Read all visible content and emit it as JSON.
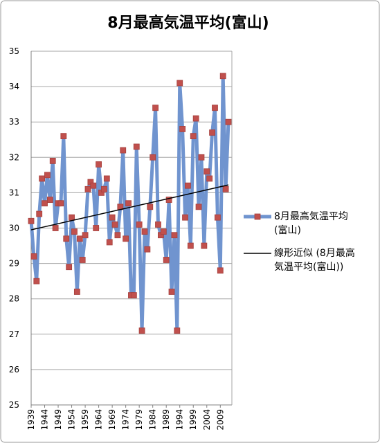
{
  "chart_data": {
    "type": "line",
    "title": "8月最高気温平均(富山)",
    "x": [
      1939,
      1940,
      1941,
      1942,
      1943,
      1944,
      1945,
      1946,
      1947,
      1948,
      1949,
      1950,
      1951,
      1952,
      1953,
      1954,
      1955,
      1956,
      1957,
      1958,
      1959,
      1960,
      1961,
      1962,
      1963,
      1964,
      1965,
      1966,
      1967,
      1968,
      1969,
      1970,
      1971,
      1972,
      1973,
      1974,
      1975,
      1976,
      1977,
      1978,
      1979,
      1980,
      1981,
      1982,
      1983,
      1984,
      1985,
      1986,
      1987,
      1988,
      1989,
      1990,
      1991,
      1992,
      1993,
      1994,
      1995,
      1996,
      1997,
      1998,
      1999,
      2000,
      2001,
      2002,
      2003,
      2004,
      2005,
      2006,
      2007,
      2008,
      2009,
      2010,
      2011,
      2012
    ],
    "series": [
      {
        "name": "8月最高気温平均(富山)",
        "color": "#7094cf",
        "marker_color": "#c0504d",
        "values": [
          30.2,
          29.2,
          28.5,
          30.4,
          31.4,
          30.7,
          31.5,
          30.8,
          31.9,
          30.0,
          30.7,
          30.7,
          32.6,
          29.7,
          28.9,
          30.3,
          29.9,
          28.2,
          29.7,
          29.1,
          29.8,
          31.1,
          31.3,
          31.2,
          30.0,
          31.8,
          31.0,
          31.1,
          31.4,
          29.6,
          30.3,
          30.1,
          29.8,
          30.6,
          32.2,
          29.7,
          30.7,
          28.1,
          28.1,
          32.3,
          30.1,
          27.1,
          29.9,
          29.4,
          30.6,
          32.0,
          33.4,
          30.1,
          29.8,
          29.9,
          29.1,
          30.8,
          28.2,
          29.8,
          27.1,
          34.1,
          32.8,
          30.3,
          31.2,
          29.5,
          32.6,
          33.1,
          30.6,
          32.0,
          29.5,
          31.6,
          31.4,
          32.7,
          33.4,
          30.3,
          28.8,
          34.3,
          31.1,
          33.0
        ]
      }
    ],
    "trendline": {
      "name": "線形近似 (8月最高気温平均(富山))",
      "color": "#000000",
      "x": [
        1939,
        2012
      ],
      "values": [
        29.95,
        31.22
      ]
    },
    "xlim": [
      1939,
      2012
    ],
    "xticks": [
      1939,
      1944,
      1949,
      1954,
      1959,
      1964,
      1969,
      1974,
      1979,
      1984,
      1989,
      1994,
      1999,
      2004,
      2009
    ],
    "ylim": [
      25,
      35
    ],
    "yticks": [
      25,
      26,
      27,
      28,
      29,
      30,
      31,
      32,
      33,
      34,
      35
    ],
    "grid": true
  }
}
